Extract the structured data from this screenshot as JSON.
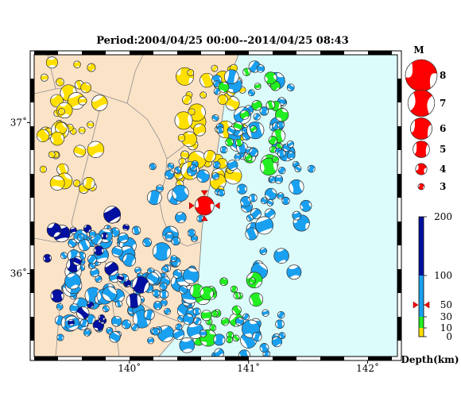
{
  "title": "Period:2004/04/25 00:00--2014/04/25 08:43",
  "colors": {
    "land": "#fbe3c8",
    "sea": "#dcfcfc",
    "highlight": "#ff0000"
  },
  "map": {
    "lon_range": [
      139.2,
      142.25
    ],
    "lat_range": [
      35.45,
      37.45
    ],
    "lon_ticks": [
      {
        "value": 140,
        "label": "140˚"
      },
      {
        "value": 141,
        "label": "141˚"
      },
      {
        "value": 142,
        "label": "142˚"
      }
    ],
    "lat_ticks": [
      {
        "value": 37,
        "label": "37˚"
      },
      {
        "value": 36,
        "label": "36˚"
      }
    ],
    "highlight_event": {
      "lon": 140.63,
      "lat": 36.45,
      "magnitude": 5.5,
      "depth_km": 50
    }
  },
  "magnitude_legend": {
    "title": "M",
    "items": [
      {
        "label": "8",
        "magnitude": 8
      },
      {
        "label": "7",
        "magnitude": 7
      },
      {
        "label": "6",
        "magnitude": 6
      },
      {
        "label": "5",
        "magnitude": 5
      },
      {
        "label": "4",
        "magnitude": 4
      },
      {
        "label": "3",
        "magnitude": 3
      }
    ]
  },
  "depth_legend": {
    "title": "Depth(km)",
    "max": 200,
    "ticks": [
      {
        "label": "200",
        "value": 200
      },
      {
        "label": "100",
        "value": 100
      },
      {
        "label": "50",
        "value": 50
      },
      {
        "label": "30",
        "value": 30
      },
      {
        "label": "10",
        "value": 10
      },
      {
        "label": "0",
        "value": 0
      }
    ],
    "bands": [
      {
        "from": 0,
        "to": 10,
        "color": "#ffe000"
      },
      {
        "from": 10,
        "to": 30,
        "color": "#22ee22"
      },
      {
        "from": 30,
        "to": 100,
        "color": "#1aa0f0"
      },
      {
        "from": 100,
        "to": 200,
        "color": "#0010a0"
      }
    ],
    "marker_value": 50
  }
}
